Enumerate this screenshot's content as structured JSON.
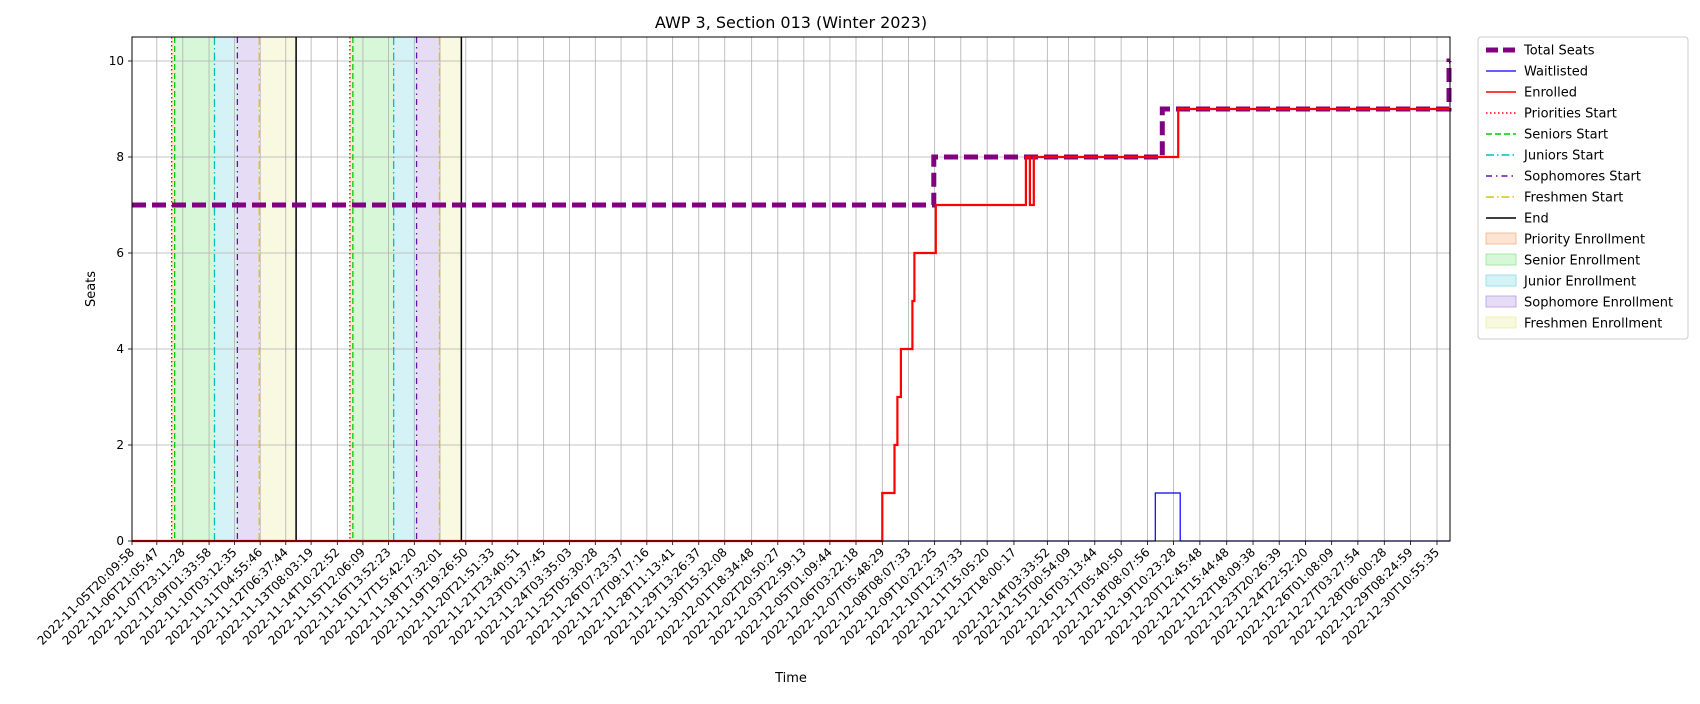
{
  "chart_data": {
    "type": "line",
    "title": "AWP 3, Section 013 (Winter 2023)",
    "xlabel": "Time",
    "ylabel": "Seats",
    "ylim": [
      0,
      10.5
    ],
    "yticks": [
      0,
      2,
      4,
      6,
      8,
      10
    ],
    "xlim": [
      "2022-11-05T20:09:58",
      "2022-12-31T00:00:00"
    ],
    "xtick_labels": [
      "2022-11-05T20:09:58",
      "2022-11-06T21:05:47",
      "2022-11-07T23:11:28",
      "2022-11-09T01:33:58",
      "2022-11-10T03:12:35",
      "2022-11-11T04:55:46",
      "2022-11-12T06:37:44",
      "2022-11-13T08:03:19",
      "2022-11-14T10:22:52",
      "2022-11-15T12:06:09",
      "2022-11-16T13:52:23",
      "2022-11-17T15:42:20",
      "2022-11-18T17:32:01",
      "2022-11-19T19:26:50",
      "2022-11-20T21:51:33",
      "2022-11-21T23:40:51",
      "2022-11-23T01:37:45",
      "2022-11-24T03:35:03",
      "2022-11-25T05:30:28",
      "2022-11-26T07:23:37",
      "2022-11-27T09:17:16",
      "2022-11-28T11:13:41",
      "2022-11-29T13:26:37",
      "2022-11-30T15:32:08",
      "2022-12-01T18:34:48",
      "2022-12-02T20:50:27",
      "2022-12-03T22:59:13",
      "2022-12-05T01:09:44",
      "2022-12-06T03:22:18",
      "2022-12-07T05:48:29",
      "2022-12-08T08:07:33",
      "2022-12-09T10:22:25",
      "2022-12-10T12:37:33",
      "2022-12-11T15:05:20",
      "2022-12-12T18:00:17",
      "2022-12-14T03:33:52",
      "2022-12-15T00:54:09",
      "2022-12-16T03:13:44",
      "2022-12-17T05:40:50",
      "2022-12-18T08:07:56",
      "2022-12-19T10:23:28",
      "2022-12-20T12:45:48",
      "2022-12-21T15:44:48",
      "2022-12-22T18:09:38",
      "2022-12-23T20:26:39",
      "2022-12-24T22:52:20",
      "2022-12-26T01:08:09",
      "2022-12-27T03:27:54",
      "2022-12-28T06:00:28",
      "2022-12-29T08:24:59",
      "2022-12-30T10:55:35"
    ],
    "series": [
      {
        "name": "Total Seats",
        "color": "#800080",
        "style": "dashed",
        "points": [
          [
            "2022-11-05T20:09:58",
            7
          ],
          [
            "2022-12-09T09:30:00",
            7
          ],
          [
            "2022-12-09T09:30:00",
            8
          ],
          [
            "2022-12-18T23:00:00",
            8
          ],
          [
            "2022-12-18T23:00:00",
            9
          ],
          [
            "2022-12-30T23:00:00",
            9
          ],
          [
            "2022-12-30T23:00:00",
            10
          ],
          [
            "2022-12-31T00:00:00",
            10
          ]
        ]
      },
      {
        "name": "Waitlisted",
        "color": "#0000ff",
        "style": "solid",
        "points": [
          [
            "2022-12-07T05:48:29",
            0
          ],
          [
            "2022-12-18T16:00:00",
            0
          ],
          [
            "2022-12-18T16:00:00",
            1
          ],
          [
            "2022-12-19T17:00:00",
            1
          ],
          [
            "2022-12-19T17:00:00",
            0
          ],
          [
            "2022-12-31T00:00:00",
            0
          ]
        ]
      },
      {
        "name": "Enrolled",
        "color": "#ff0000",
        "style": "solid",
        "points": [
          [
            "2022-11-05T20:09:58",
            0
          ],
          [
            "2022-12-07T05:48:29",
            0
          ],
          [
            "2022-12-07T05:48:29",
            1
          ],
          [
            "2022-12-07T18:00:00",
            1
          ],
          [
            "2022-12-07T18:00:00",
            2
          ],
          [
            "2022-12-07T21:00:00",
            2
          ],
          [
            "2022-12-07T21:00:00",
            3
          ],
          [
            "2022-12-08T00:30:00",
            3
          ],
          [
            "2022-12-08T00:30:00",
            4
          ],
          [
            "2022-12-08T12:00:00",
            4
          ],
          [
            "2022-12-08T12:00:00",
            5
          ],
          [
            "2022-12-08T14:00:00",
            5
          ],
          [
            "2022-12-08T14:00:00",
            6
          ],
          [
            "2022-12-09T11:30:00",
            6
          ],
          [
            "2022-12-09T11:30:00",
            7
          ],
          [
            "2022-12-13T06:00:00",
            7
          ],
          [
            "2022-12-13T06:00:00",
            8
          ],
          [
            "2022-12-13T10:00:00",
            8
          ],
          [
            "2022-12-13T10:00:00",
            7
          ],
          [
            "2022-12-13T14:00:00",
            7
          ],
          [
            "2022-12-13T14:00:00",
            8
          ],
          [
            "2022-12-19T15:00:00",
            8
          ],
          [
            "2022-12-19T15:00:00",
            9
          ],
          [
            "2022-12-31T00:00:00",
            9
          ]
        ]
      }
    ],
    "vlines": [
      {
        "name": "Priorities Start",
        "color": "#ff0000",
        "style": "dotted",
        "x": [
          "2022-11-07T12:00:00",
          "2022-11-14T23:00:00"
        ]
      },
      {
        "name": "Seniors Start",
        "color": "#00cc00",
        "style": "dashed",
        "x": [
          "2022-11-07T15:00:00",
          "2022-11-15T02:00:00"
        ]
      },
      {
        "name": "Juniors Start",
        "color": "#00bfbf",
        "style": "dashdot",
        "x": [
          "2022-11-09T07:00:00",
          "2022-11-16T19:00:00"
        ]
      },
      {
        "name": "Sophomores Start",
        "color": "#6a0dad",
        "style": "dashdotdot",
        "x": [
          "2022-11-10T06:00:00",
          "2022-11-17T18:00:00"
        ]
      },
      {
        "name": "Freshmen Start",
        "color": "#d4c800",
        "style": "dashdot",
        "x": [
          "2022-11-11T04:00:00",
          "2022-11-18T17:00:00"
        ]
      },
      {
        "name": "End",
        "color": "#000000",
        "style": "solid",
        "x": [
          "2022-11-12T17:00:00",
          "2022-11-19T15:00:00"
        ]
      }
    ],
    "spans": [
      {
        "name": "Priority Enrollment",
        "color": "#f4b183",
        "ranges": [
          [
            "2022-11-07T12:00:00",
            "2022-11-07T15:00:00"
          ],
          [
            "2022-11-14T23:00:00",
            "2022-11-15T02:00:00"
          ]
        ]
      },
      {
        "name": "Senior Enrollment",
        "color": "#90e890",
        "ranges": [
          [
            "2022-11-07T15:00:00",
            "2022-11-09T07:00:00"
          ],
          [
            "2022-11-15T02:00:00",
            "2022-11-16T19:00:00"
          ]
        ]
      },
      {
        "name": "Junior Enrollment",
        "color": "#88dde8",
        "ranges": [
          [
            "2022-11-09T07:00:00",
            "2022-11-10T06:00:00"
          ],
          [
            "2022-11-16T19:00:00",
            "2022-11-17T18:00:00"
          ]
        ]
      },
      {
        "name": "Sophomore Enrollment",
        "color": "#b99ae6",
        "ranges": [
          [
            "2022-11-10T06:00:00",
            "2022-11-11T04:00:00"
          ],
          [
            "2022-11-17T18:00:00",
            "2022-11-18T17:00:00"
          ]
        ]
      },
      {
        "name": "Freshmen Enrollment",
        "color": "#eeeeaa",
        "ranges": [
          [
            "2022-11-11T04:00:00",
            "2022-11-12T17:00:00"
          ],
          [
            "2022-11-18T17:00:00",
            "2022-11-19T15:00:00"
          ]
        ]
      }
    ],
    "legend": {
      "placement": "outside-top-right",
      "entries": [
        {
          "label": "Total Seats",
          "kind": "line",
          "color": "#800080",
          "style": "dashed-thick"
        },
        {
          "label": "Waitlisted",
          "kind": "line",
          "color": "#0000ff",
          "style": "solid-thin"
        },
        {
          "label": "Enrolled",
          "kind": "line",
          "color": "#ff0000",
          "style": "solid"
        },
        {
          "label": "Priorities Start",
          "kind": "line",
          "color": "#ff0000",
          "style": "dotted"
        },
        {
          "label": "Seniors Start",
          "kind": "line",
          "color": "#00cc00",
          "style": "dashed"
        },
        {
          "label": "Juniors Start",
          "kind": "line",
          "color": "#00bfbf",
          "style": "dashdot"
        },
        {
          "label": "Sophomores Start",
          "kind": "line",
          "color": "#6a0dad",
          "style": "dashdotdot"
        },
        {
          "label": "Freshmen Start",
          "kind": "line",
          "color": "#d4c800",
          "style": "dashdot"
        },
        {
          "label": "End",
          "kind": "line",
          "color": "#000000",
          "style": "solid"
        },
        {
          "label": "Priority Enrollment",
          "kind": "patch",
          "color": "#f4b183"
        },
        {
          "label": "Senior Enrollment",
          "kind": "patch",
          "color": "#90e890"
        },
        {
          "label": "Junior Enrollment",
          "kind": "patch",
          "color": "#88dde8"
        },
        {
          "label": "Sophomore Enrollment",
          "kind": "patch",
          "color": "#b99ae6"
        },
        {
          "label": "Freshmen Enrollment",
          "kind": "patch",
          "color": "#eeeeaa"
        }
      ]
    },
    "grid": true
  }
}
